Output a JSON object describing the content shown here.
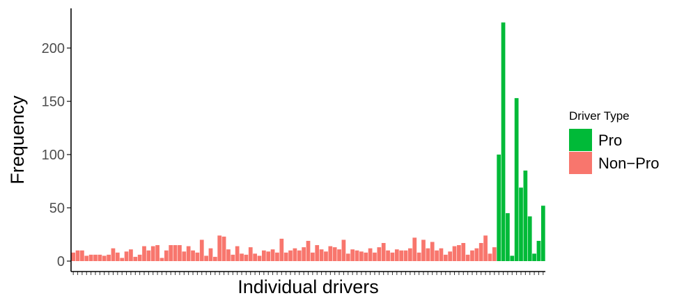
{
  "chart_data": {
    "type": "bar",
    "title": "",
    "xlabel": "Individual drivers",
    "ylabel": "Frequency",
    "ylim": [
      0,
      230
    ],
    "yticks": [
      0,
      50,
      100,
      150,
      200
    ],
    "grid": false,
    "legend": {
      "title": "Driver Type",
      "placement": "right",
      "entries": [
        {
          "label": "Pro",
          "color": "#00BA38"
        },
        {
          "label": "Non−Pro",
          "color": "#F8766D"
        }
      ]
    },
    "series": [
      {
        "type": "Non-Pro",
        "color": "#F8766D",
        "values": [
          8,
          10,
          10,
          5,
          6,
          6,
          6,
          5,
          6,
          12,
          8,
          3,
          9,
          11,
          4,
          6,
          14,
          10,
          14,
          15,
          3,
          10,
          15,
          15,
          15,
          9,
          14,
          10,
          8,
          20,
          5,
          12,
          4,
          24,
          23,
          11,
          6,
          14,
          7,
          6,
          13,
          7,
          5,
          10,
          9,
          11,
          8,
          21,
          8,
          10,
          12,
          10,
          13,
          19,
          8,
          15,
          11,
          9,
          14,
          13,
          11,
          20,
          7,
          11,
          10,
          9,
          8,
          12,
          8,
          13,
          17,
          10,
          8,
          11,
          10,
          10,
          12,
          22,
          8,
          20,
          12,
          18,
          10,
          12,
          6,
          9,
          14,
          15,
          17,
          6,
          10,
          12,
          17,
          24,
          7,
          13
        ]
      },
      {
        "type": "Pro",
        "color": "#00BA38",
        "values": [
          100,
          224,
          45,
          5,
          153,
          69,
          85,
          42,
          7,
          19,
          52
        ]
      }
    ]
  }
}
